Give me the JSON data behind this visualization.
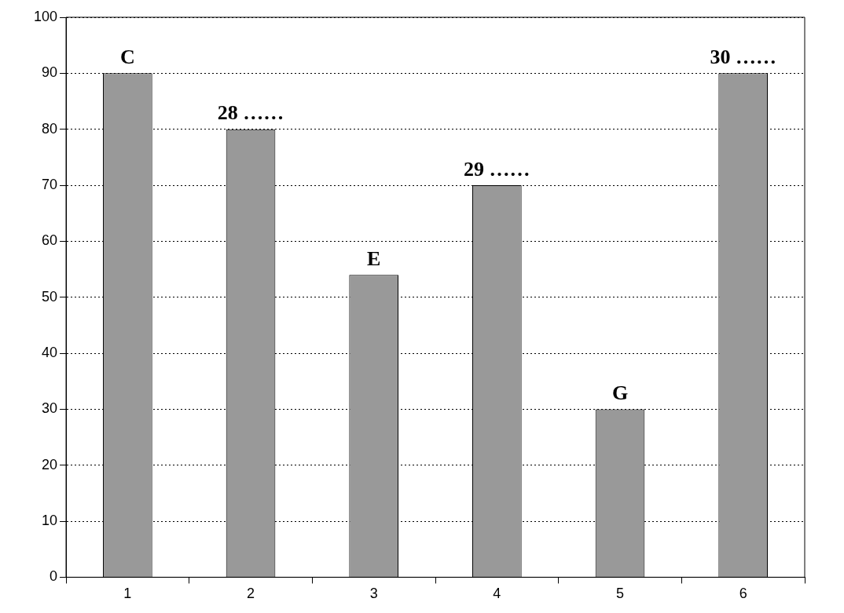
{
  "chart_data": {
    "type": "bar",
    "categories": [
      "1",
      "2",
      "3",
      "4",
      "5",
      "6"
    ],
    "values": [
      90,
      80,
      54,
      70,
      30,
      90
    ],
    "color": "#999999",
    "ylim": [
      0,
      100
    ],
    "yticks": [
      0,
      10,
      20,
      30,
      40,
      50,
      60,
      70,
      80,
      90,
      100
    ],
    "grid": "y",
    "legend": false,
    "annotations": [
      {
        "text": "C",
        "x": "1",
        "y": 90
      },
      {
        "text": "28 ……",
        "x": "2",
        "y": 80
      },
      {
        "text": "E",
        "x": "3",
        "y": 54
      },
      {
        "text": "29 ……",
        "x": "4",
        "y": 70
      },
      {
        "text": "G",
        "x": "5",
        "y": 30
      },
      {
        "text": "30 ……",
        "x": "6",
        "y": 90
      }
    ]
  }
}
